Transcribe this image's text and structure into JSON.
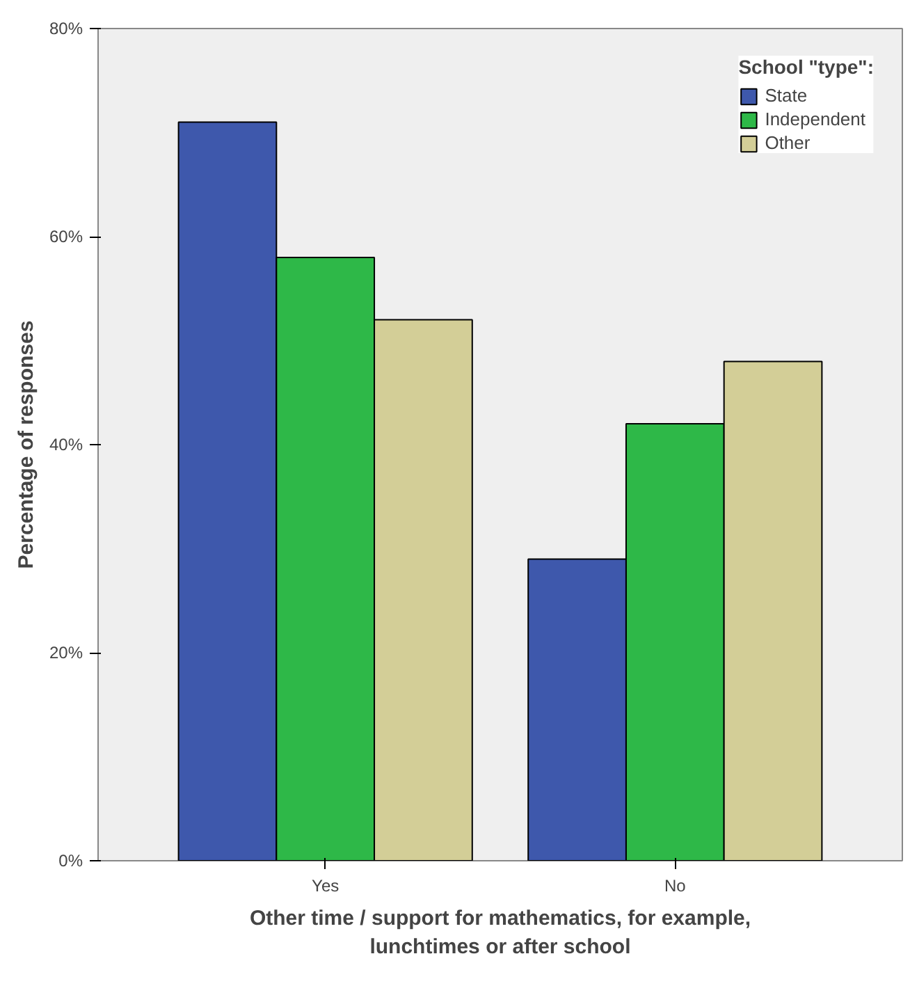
{
  "chart_data": {
    "type": "bar",
    "xlabel": "Other time / support for mathematics, for example,\nlunchtimes or after school",
    "ylabel": "Percentage of responses",
    "legend_title": "School \"type\":",
    "categories": [
      "Yes",
      "No"
    ],
    "series": [
      {
        "name": "State",
        "color": "#3e58ac",
        "values": [
          71,
          29
        ]
      },
      {
        "name": "Independent",
        "color": "#2eb848",
        "values": [
          58,
          42
        ]
      },
      {
        "name": "Other",
        "color": "#d3ce97",
        "values": [
          52,
          48
        ]
      }
    ],
    "ylim": [
      0,
      80
    ],
    "yticks": [
      {
        "value": 0,
        "label": "0%"
      },
      {
        "value": 20,
        "label": "20%"
      },
      {
        "value": 40,
        "label": "40%"
      },
      {
        "value": 60,
        "label": "60%"
      },
      {
        "value": 80,
        "label": "80%"
      }
    ],
    "grid": false,
    "legend": "top right"
  }
}
